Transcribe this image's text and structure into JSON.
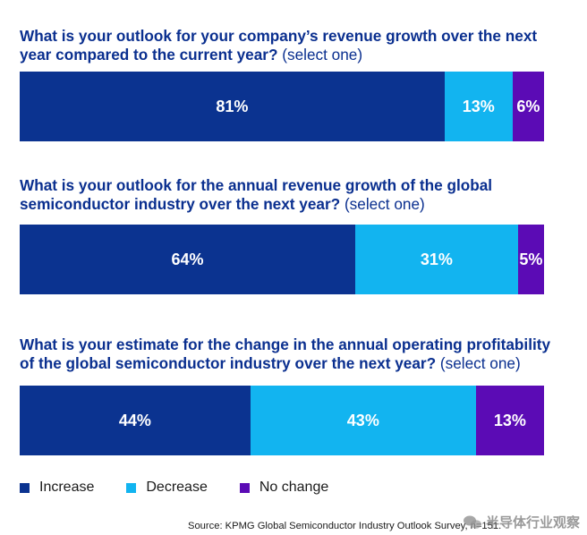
{
  "chart_data": [
    {
      "type": "bar",
      "orientation": "horizontal-stacked-100",
      "title": "What is your outlook for your company’s revenue growth over the next year compared to the current year?",
      "subtitle": "(select one)",
      "series": [
        {
          "name": "Increase",
          "values": [
            81
          ],
          "label": "81%"
        },
        {
          "name": "Decrease",
          "values": [
            13
          ],
          "label": "13%"
        },
        {
          "name": "No change",
          "values": [
            6
          ],
          "label": "6%"
        }
      ]
    },
    {
      "type": "bar",
      "orientation": "horizontal-stacked-100",
      "title": "What is your outlook for the annual revenue growth of the global semiconductor industry over the next year?",
      "subtitle": "(select one)",
      "series": [
        {
          "name": "Increase",
          "values": [
            64
          ],
          "label": "64%"
        },
        {
          "name": "Decrease",
          "values": [
            31
          ],
          "label": "31%"
        },
        {
          "name": "No change",
          "values": [
            5
          ],
          "label": "5%"
        }
      ]
    },
    {
      "type": "bar",
      "orientation": "horizontal-stacked-100",
      "title": "What is your estimate for the change in the annual operating profitability of the global semiconductor industry over the next year?",
      "subtitle": "(select one)",
      "series": [
        {
          "name": "Increase",
          "values": [
            44
          ],
          "label": "44%"
        },
        {
          "name": "Decrease",
          "values": [
            43
          ],
          "label": "43%"
        },
        {
          "name": "No change",
          "values": [
            13
          ],
          "label": "13%"
        }
      ]
    }
  ],
  "colors": {
    "increase": "#0b3390",
    "decrease": "#12b4f0",
    "no_change": "#5b0bb5",
    "question_text": "#0a2f8f"
  },
  "legend": {
    "placement": "bottom-left",
    "items": [
      "Increase",
      "Decrease",
      "No change"
    ]
  },
  "source": "Source: KPMG Global Semiconductor Industry Outlook Survey, n=151.",
  "watermark": "半导体行业观察"
}
